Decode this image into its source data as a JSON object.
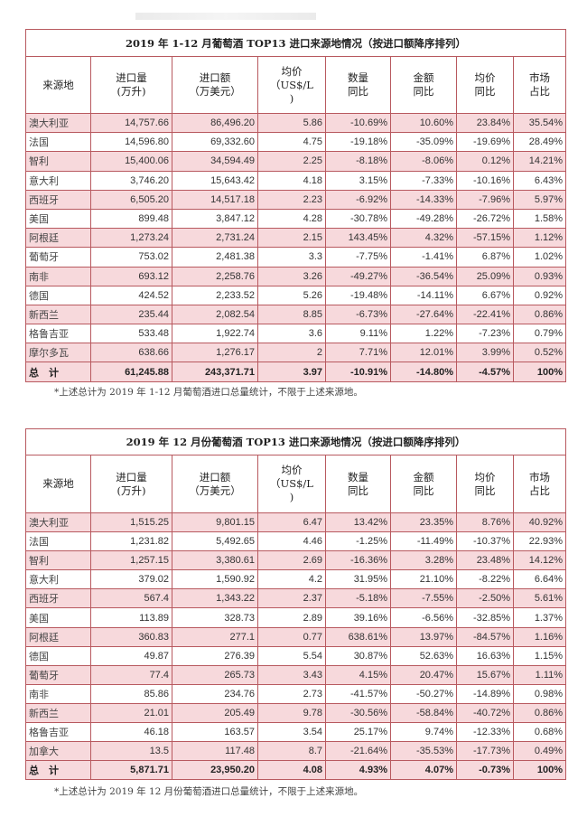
{
  "colors": {
    "border": "#b8595f",
    "pink_row": "#f7d9dc"
  },
  "headers": [
    [
      "来源地"
    ],
    [
      "进口量",
      "(万升)"
    ],
    [
      "进口额",
      "（万美元）"
    ],
    [
      "均价",
      "（US$/L",
      ")"
    ],
    [
      "数量",
      "同比"
    ],
    [
      "金额",
      "同比"
    ],
    [
      "均价",
      "同比"
    ],
    [
      "市场",
      "占比"
    ]
  ],
  "tables": [
    {
      "title": "2019 年 1-12 月葡萄酒 TOP13 进口来源地情况（按进口额降序排列）",
      "rows": [
        [
          "澳大利亚",
          "14,757.66",
          "86,496.20",
          "5.86",
          "-10.69%",
          "10.60%",
          "23.84%",
          "35.54%"
        ],
        [
          "法国",
          "14,596.80",
          "69,332.60",
          "4.75",
          "-19.18%",
          "-35.09%",
          "-19.69%",
          "28.49%"
        ],
        [
          "智利",
          "15,400.06",
          "34,594.49",
          "2.25",
          "-8.18%",
          "-8.06%",
          "0.12%",
          "14.21%"
        ],
        [
          "意大利",
          "3,746.20",
          "15,643.42",
          "4.18",
          "3.15%",
          "-7.33%",
          "-10.16%",
          "6.43%"
        ],
        [
          "西班牙",
          "6,505.20",
          "14,517.18",
          "2.23",
          "-6.92%",
          "-14.33%",
          "-7.96%",
          "5.97%"
        ],
        [
          "美国",
          "899.48",
          "3,847.12",
          "4.28",
          "-30.78%",
          "-49.28%",
          "-26.72%",
          "1.58%"
        ],
        [
          "阿根廷",
          "1,273.24",
          "2,731.24",
          "2.15",
          "143.45%",
          "4.32%",
          "-57.15%",
          "1.12%"
        ],
        [
          "葡萄牙",
          "753.02",
          "2,481.38",
          "3.3",
          "-7.75%",
          "-1.41%",
          "6.87%",
          "1.02%"
        ],
        [
          "南非",
          "693.12",
          "2,258.76",
          "3.26",
          "-49.27%",
          "-36.54%",
          "25.09%",
          "0.93%"
        ],
        [
          "德国",
          "424.52",
          "2,233.52",
          "5.26",
          "-19.48%",
          "-14.11%",
          "6.67%",
          "0.92%"
        ],
        [
          "新西兰",
          "235.44",
          "2,082.54",
          "8.85",
          "-6.73%",
          "-27.64%",
          "-22.41%",
          "0.86%"
        ],
        [
          "格鲁吉亚",
          "533.48",
          "1,922.74",
          "3.6",
          "9.11%",
          "1.22%",
          "-7.23%",
          "0.79%"
        ],
        [
          "摩尔多瓦",
          "638.66",
          "1,276.17",
          "2",
          "7.71%",
          "12.01%",
          "3.99%",
          "0.52%"
        ]
      ],
      "total": [
        "总　计",
        "61,245.88",
        "243,371.71",
        "3.97",
        "-10.91%",
        "-14.80%",
        "-4.57%",
        "100%"
      ],
      "note": "*上述总计为 2019 年 1-12 月葡萄酒进口总量统计，不限于上述来源地。"
    },
    {
      "title": "2019 年 12 月份葡萄酒 TOP13 进口来源地情况（按进口额降序排列）",
      "rows": [
        [
          "澳大利亚",
          "1,515.25",
          "9,801.15",
          "6.47",
          "13.42%",
          "23.35%",
          "8.76%",
          "40.92%"
        ],
        [
          "法国",
          "1,231.82",
          "5,492.65",
          "4.46",
          "-1.25%",
          "-11.49%",
          "-10.37%",
          "22.93%"
        ],
        [
          "智利",
          "1,257.15",
          "3,380.61",
          "2.69",
          "-16.36%",
          "3.28%",
          "23.48%",
          "14.12%"
        ],
        [
          "意大利",
          "379.02",
          "1,590.92",
          "4.2",
          "31.95%",
          "21.10%",
          "-8.22%",
          "6.64%"
        ],
        [
          "西班牙",
          "567.4",
          "1,343.22",
          "2.37",
          "-5.18%",
          "-7.55%",
          "-2.50%",
          "5.61%"
        ],
        [
          "美国",
          "113.89",
          "328.73",
          "2.89",
          "39.16%",
          "-6.56%",
          "-32.85%",
          "1.37%"
        ],
        [
          "阿根廷",
          "360.83",
          "277.1",
          "0.77",
          "638.61%",
          "13.97%",
          "-84.57%",
          "1.16%"
        ],
        [
          "德国",
          "49.87",
          "276.39",
          "5.54",
          "30.87%",
          "52.63%",
          "16.63%",
          "1.15%"
        ],
        [
          "葡萄牙",
          "77.4",
          "265.73",
          "3.43",
          "4.15%",
          "20.47%",
          "15.67%",
          "1.11%"
        ],
        [
          "南非",
          "85.86",
          "234.76",
          "2.73",
          "-41.57%",
          "-50.27%",
          "-14.89%",
          "0.98%"
        ],
        [
          "新西兰",
          "21.01",
          "205.49",
          "9.78",
          "-30.56%",
          "-58.84%",
          "-40.72%",
          "0.86%"
        ],
        [
          "格鲁吉亚",
          "46.18",
          "163.57",
          "3.54",
          "25.17%",
          "9.74%",
          "-12.33%",
          "0.68%"
        ],
        [
          "加拿大",
          "13.5",
          "117.48",
          "8.7",
          "-21.64%",
          "-35.53%",
          "-17.73%",
          "0.49%"
        ]
      ],
      "total": [
        "总　计",
        "5,871.71",
        "23,950.20",
        "4.08",
        "4.93%",
        "4.07%",
        "-0.73%",
        "100%"
      ],
      "note": "*上述总计为 2019 年 12 月份葡萄酒进口总量统计，不限于上述来源地。"
    }
  ]
}
